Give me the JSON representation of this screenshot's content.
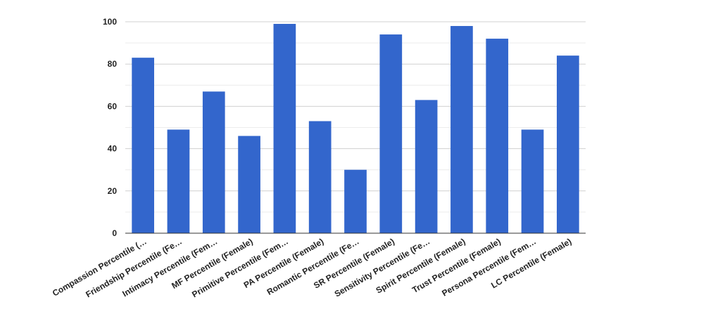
{
  "chart_data": {
    "type": "bar",
    "categories": [
      "Compassion Percentile (…",
      "Friendship Percentile (Fe…",
      "Intimacy Percentile (Fem…",
      "MF Percentile (Female)",
      "Primitive Percentile (Fem…",
      "PA Percentile (Female)",
      "Romantic Percentile (Fe…",
      "SR Percentile (Female)",
      "Sensitivity Percentile (Fe…",
      "Spirit Percentile (Female)",
      "Trust Percentile (Female)",
      "Persona Percentile (Fem…",
      "LC Percentile (Female)"
    ],
    "values": [
      83,
      49,
      67,
      46,
      99,
      53,
      30,
      94,
      63,
      98,
      92,
      49,
      84
    ],
    "color": "#3366cc",
    "ylim": [
      0,
      100
    ],
    "yticks": [
      0,
      20,
      40,
      60,
      80,
      100
    ],
    "grid": true
  }
}
